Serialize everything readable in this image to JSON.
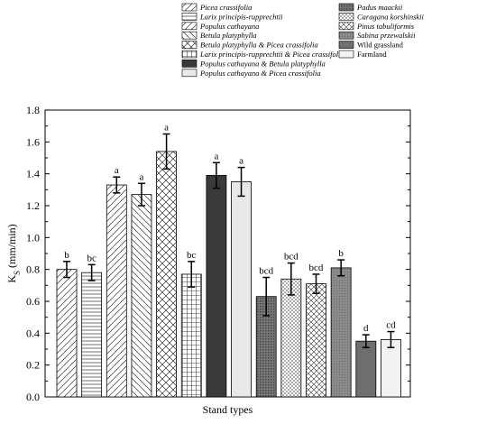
{
  "chart_data": {
    "type": "bar",
    "title": "",
    "xlabel": "Stand types",
    "ylabel_main": "K",
    "ylabel_sub": "S",
    "ylabel_unit": " (mm/min)",
    "ylim": [
      0,
      1.8
    ],
    "yticks": [
      "0.0",
      "0.2",
      "0.4",
      "0.6",
      "0.8",
      "1.0",
      "1.2",
      "1.4",
      "1.6",
      "1.8"
    ],
    "grid": false,
    "legend_placement": "top",
    "categories": [
      "Picea crassifolia",
      "Larix principis-rupprechtii",
      "Populus cathayana",
      "Betula platyphylla",
      "Betula platyphylla & Picea crassifolia",
      "Larix principis-rupprechtii & Picea crassifolia",
      "Populus cathayana & Betula platyphylla",
      "Populus cathayana & Picea crassifolia",
      "Padus maackii",
      "Caragana korshinskii",
      "Pinus tabuliformis",
      "Sabina przewalskii",
      "Wild grassland",
      "Farmland"
    ],
    "italic": [
      true,
      true,
      true,
      true,
      true,
      true,
      true,
      true,
      true,
      true,
      true,
      true,
      false,
      false
    ],
    "patterns": [
      "diag-fwd",
      "horiz",
      "diag-fwd",
      "diag-back",
      "crosshatch-diag",
      "grid",
      "solid-dark",
      "solid-light",
      "dots-dense",
      "diag-fine",
      "crosshatch-fine",
      "dots-gray",
      "solid-gray",
      "solid-pale"
    ],
    "values": [
      0.8,
      0.78,
      1.33,
      1.27,
      1.54,
      0.77,
      1.39,
      1.35,
      0.63,
      0.74,
      0.71,
      0.81,
      0.35,
      0.36
    ],
    "errors": [
      0.05,
      0.05,
      0.05,
      0.07,
      0.11,
      0.08,
      0.08,
      0.09,
      0.12,
      0.1,
      0.06,
      0.05,
      0.04,
      0.05
    ],
    "letters": [
      "b",
      "bc",
      "a",
      "a",
      "a",
      "bc",
      "a",
      "a",
      "bcd",
      "bcd",
      "bcd",
      "b",
      "d",
      "cd"
    ]
  }
}
